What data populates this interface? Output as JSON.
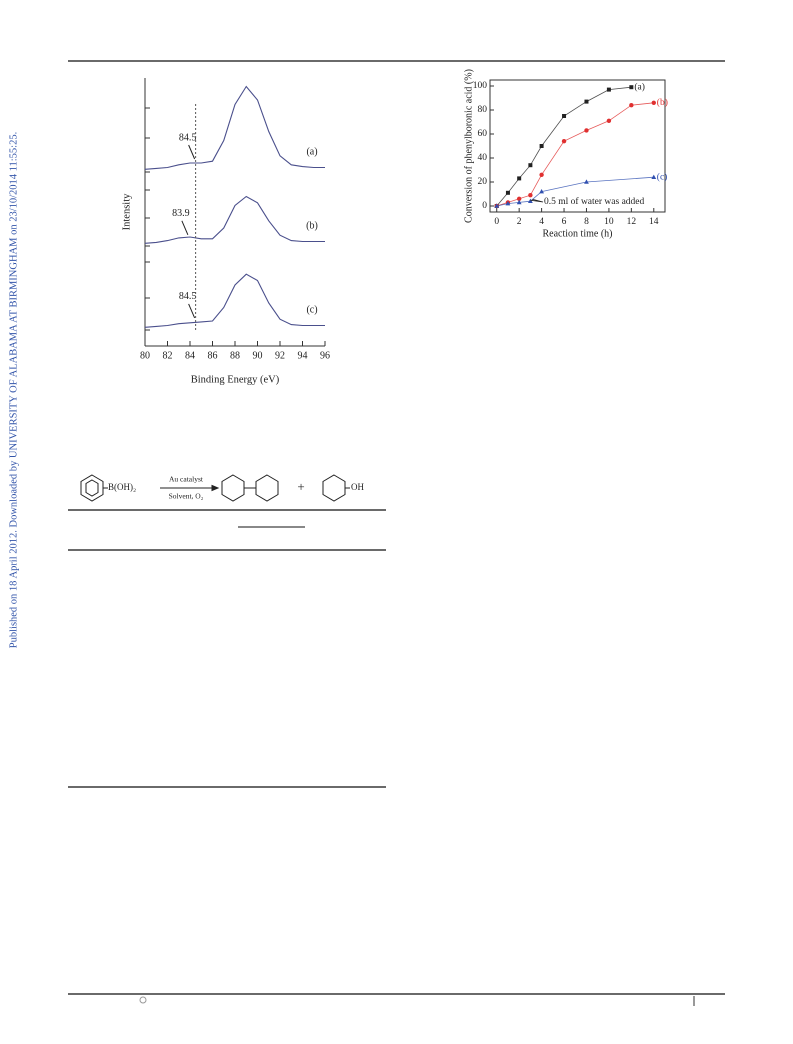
{
  "sidebar": "Published on 18 April 2012. Downloaded by UNIVERSITY OF ALABAMA AT BIRMINGHAM on 23/10/2014 11:55:25.",
  "chart_data": [
    {
      "type": "spectra",
      "xlabel": "Binding Energy (eV)",
      "ylabel": "Intensity",
      "xlim": [
        80,
        96
      ],
      "xticks": [
        80,
        82,
        84,
        86,
        88,
        90,
        92,
        94,
        96
      ],
      "ylim": [
        0,
        100
      ],
      "x": [
        80,
        81,
        82,
        83,
        84,
        85,
        86,
        87,
        88,
        89,
        90,
        91,
        92,
        93,
        94,
        95,
        96
      ],
      "panels": [
        {
          "name": "(a)",
          "peak_label": 84.5,
          "values": [
            3,
            4,
            5,
            8,
            10,
            10,
            12,
            35,
            75,
            95,
            80,
            45,
            18,
            8,
            6,
            5,
            5
          ]
        },
        {
          "name": "(b)",
          "peak_label": 83.9,
          "values": [
            3,
            4,
            6,
            9,
            10,
            8,
            8,
            20,
            45,
            55,
            48,
            28,
            12,
            6,
            5,
            5,
            5
          ]
        },
        {
          "name": "(c)",
          "peak_label": 84.5,
          "values": [
            3,
            4,
            5,
            7,
            8,
            9,
            10,
            25,
            50,
            62,
            55,
            30,
            12,
            6,
            5,
            5,
            5
          ]
        }
      ],
      "color": "#4a4f8c"
    },
    {
      "type": "line",
      "xlabel": "Reaction time (h)",
      "ylabel": "Conversion of phenylboronic acid (%)",
      "xlim": [
        -0.6,
        15
      ],
      "xticks": [
        0,
        2,
        4,
        6,
        8,
        10,
        12,
        14
      ],
      "ylim": [
        -5,
        105
      ],
      "yticks": [
        0,
        20,
        40,
        60,
        80,
        100
      ],
      "annotation": "0.5 ml of water was added",
      "series": [
        {
          "name": "(a)",
          "color": "#222222",
          "marker": "square",
          "x": [
            0,
            1,
            2,
            3,
            4,
            6,
            8,
            10,
            12
          ],
          "values": [
            0,
            11,
            23,
            34,
            50,
            75,
            87,
            97,
            99
          ]
        },
        {
          "name": "(b)",
          "color": "#e03030",
          "marker": "circle",
          "x": [
            0,
            1,
            2,
            3,
            4,
            6,
            8,
            10,
            12,
            14
          ],
          "values": [
            0,
            3,
            6,
            9,
            26,
            54,
            63,
            71,
            84,
            86
          ]
        },
        {
          "name": "(c)",
          "color": "#3050b0",
          "marker": "triangle",
          "x": [
            0,
            1,
            2,
            3,
            4,
            8,
            14
          ],
          "values": [
            0,
            2,
            3,
            4,
            12,
            20,
            24
          ]
        }
      ]
    }
  ],
  "scheme": {
    "reagent": "B(OH)₂",
    "above_arrow": "Au catalyst",
    "below_arrow": "Solvent, O₂",
    "plus": "+",
    "product_group": "OH"
  }
}
